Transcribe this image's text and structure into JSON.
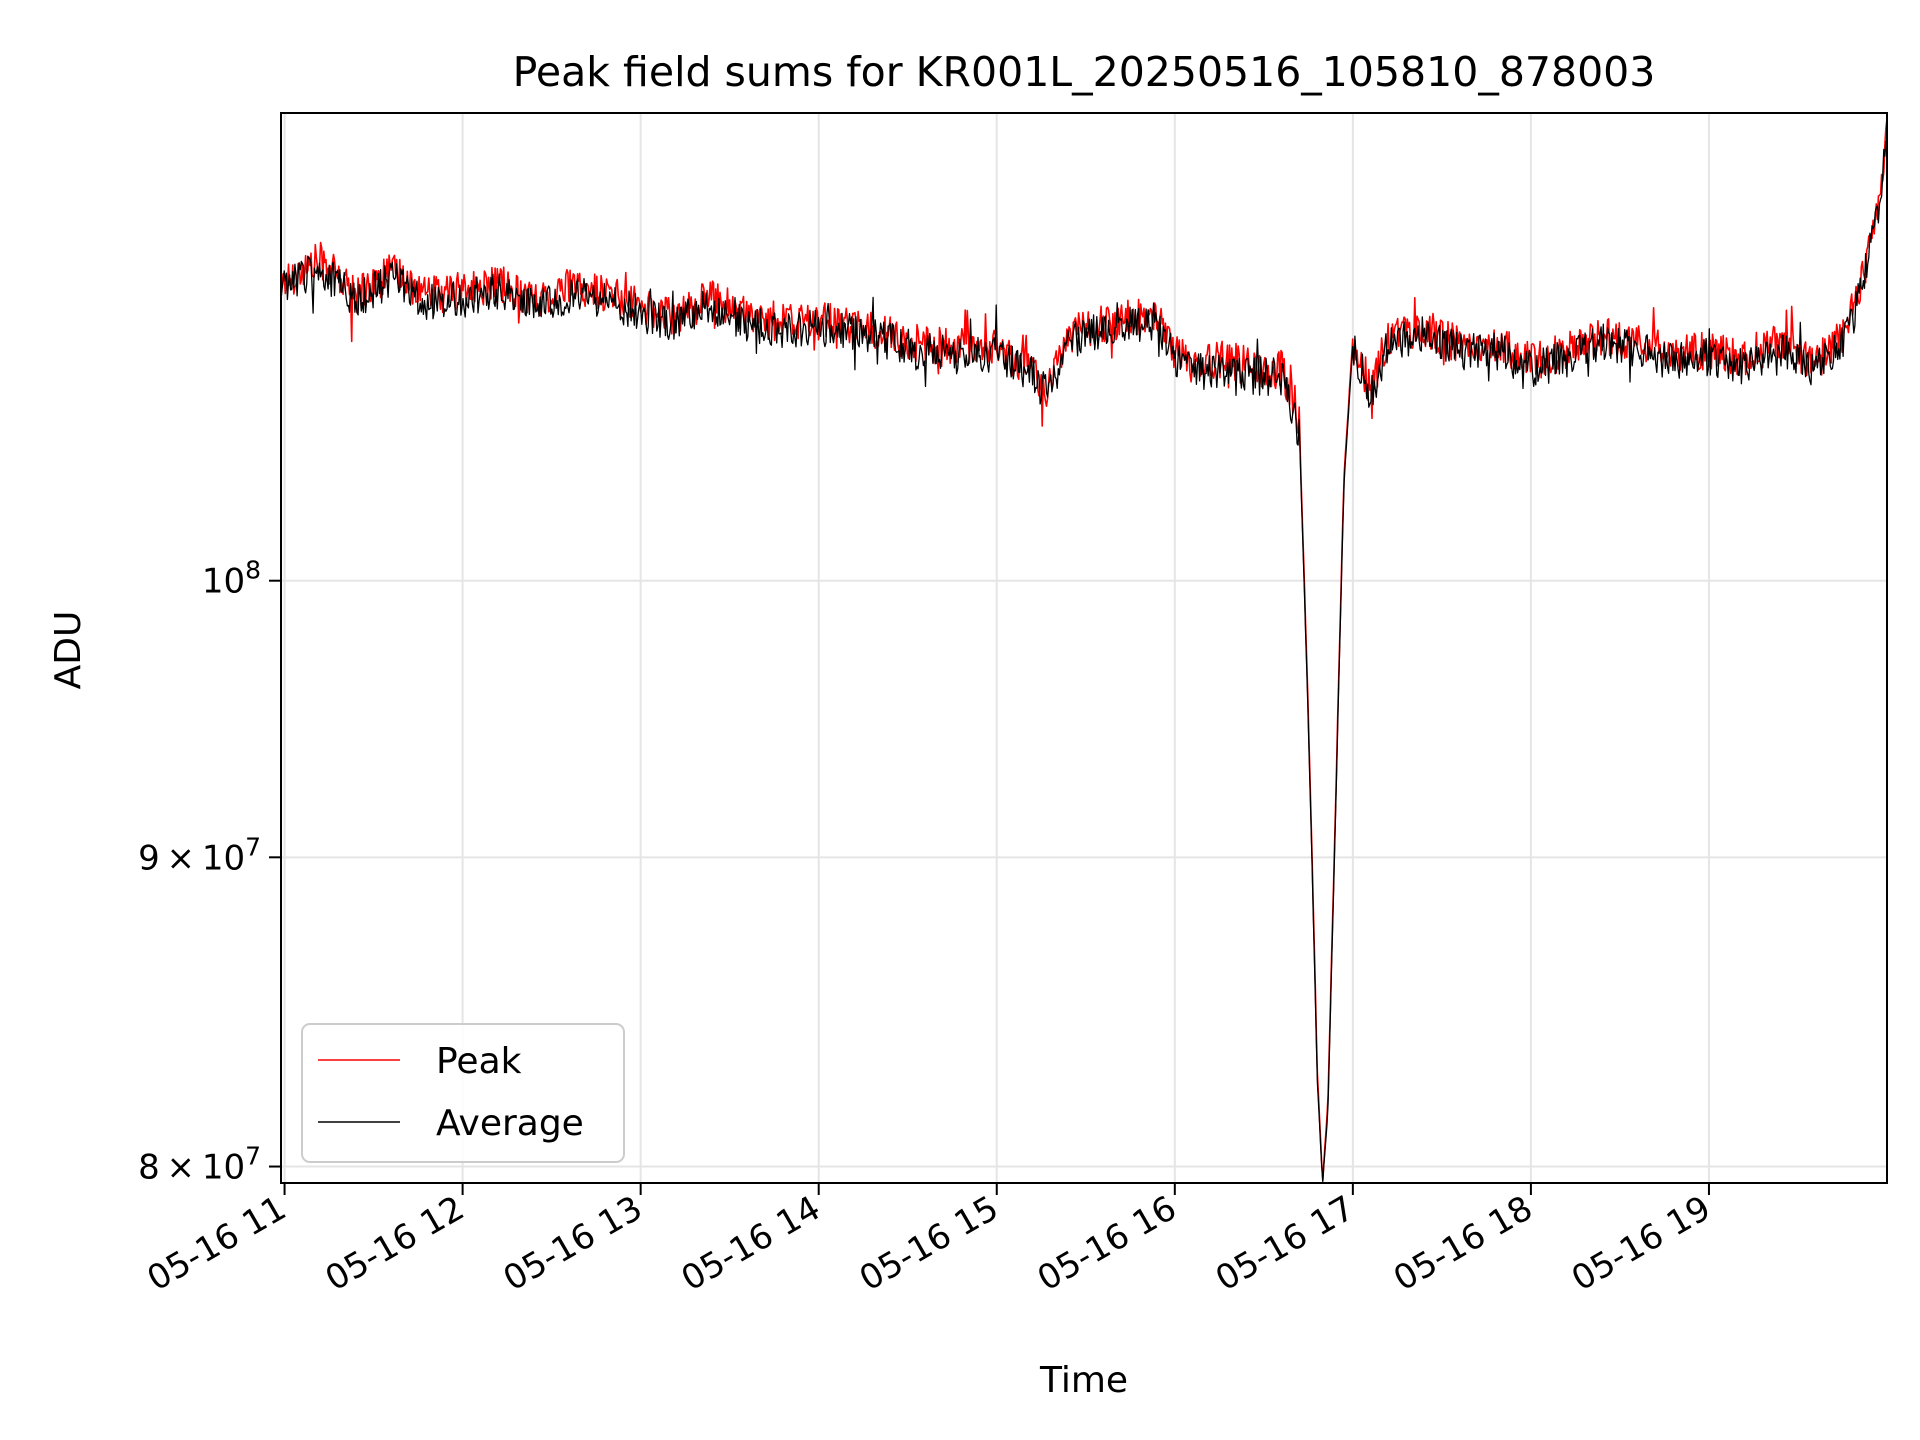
{
  "chart_data": {
    "type": "line",
    "title": "Peak field sums for KR001L_20250516_105810_878003",
    "xlabel": "Time",
    "ylabel": "ADU",
    "yscale": "log",
    "ylim": [
      79500000,
      119500000
    ],
    "xlim_hours": [
      10.98,
      20.0
    ],
    "grid": true,
    "legend_position": "lower-left",
    "x_ticks": [
      {
        "value": 11,
        "label": "05-16 11"
      },
      {
        "value": 12,
        "label": "05-16 12"
      },
      {
        "value": 13,
        "label": "05-16 13"
      },
      {
        "value": 14,
        "label": "05-16 14"
      },
      {
        "value": 15,
        "label": "05-16 15"
      },
      {
        "value": 16,
        "label": "05-16 16"
      },
      {
        "value": 17,
        "label": "05-16 17"
      },
      {
        "value": 18,
        "label": "05-16 18"
      },
      {
        "value": 19,
        "label": "05-16 19"
      }
    ],
    "y_ticks": [
      {
        "value": 80000000,
        "mantissa": "8",
        "exp": "7"
      },
      {
        "value": 90000000,
        "mantissa": "9",
        "exp": "7"
      },
      {
        "value": 100000000,
        "mantissa": "",
        "exp": "8"
      }
    ],
    "y_tick_times": "×",
    "y_tick_base": "10",
    "x": [
      10.98,
      11.2,
      11.4,
      11.6,
      11.8,
      12.0,
      12.2,
      12.4,
      12.6,
      12.8,
      13.0,
      13.2,
      13.4,
      13.6,
      13.8,
      14.0,
      14.2,
      14.4,
      14.6,
      14.75,
      15.0,
      15.1,
      15.2,
      15.28,
      15.4,
      15.6,
      15.8,
      15.9,
      16.0,
      16.1,
      16.3,
      16.45,
      16.6,
      16.65,
      16.7,
      16.75,
      16.8,
      16.83,
      16.86,
      16.9,
      16.95,
      17.0,
      17.1,
      17.2,
      17.4,
      17.6,
      17.8,
      18.0,
      18.2,
      18.4,
      18.6,
      18.8,
      19.0,
      19.2,
      19.4,
      19.6,
      19.75,
      19.85,
      19.95,
      20.0
    ],
    "series": [
      {
        "name": "Peak",
        "color": "#ff0000",
        "values": [
          112000000,
          113000000,
          111500000,
          112500000,
          111500000,
          111600000,
          112000000,
          111300000,
          111800000,
          111600000,
          111000000,
          110600000,
          111400000,
          110600000,
          110300000,
          110400000,
          110200000,
          109800000,
          109400000,
          109300000,
          109300000,
          108800000,
          108500000,
          107600000,
          109800000,
          110300000,
          110600000,
          110400000,
          109200000,
          108600000,
          108800000,
          108400000,
          108400000,
          107400000,
          106000000,
          95000000,
          83000000,
          79500000,
          82000000,
          91000000,
          104000000,
          109700000,
          107500000,
          109700000,
          110100000,
          109400000,
          109500000,
          108700000,
          109100000,
          109800000,
          109500000,
          109000000,
          109200000,
          108800000,
          109500000,
          108600000,
          109800000,
          111800000,
          115500000,
          118800000
        ]
      },
      {
        "name": "Average",
        "color": "#000000",
        "values": [
          111700000,
          112700000,
          111200000,
          112200000,
          111200000,
          111300000,
          111700000,
          111000000,
          111500000,
          111300000,
          110700000,
          110300000,
          111100000,
          110300000,
          110000000,
          110100000,
          109900000,
          109500000,
          109100000,
          109000000,
          109000000,
          108500000,
          108200000,
          107300000,
          109500000,
          110000000,
          110300000,
          110100000,
          108900000,
          108300000,
          108500000,
          108100000,
          108100000,
          107100000,
          105700000,
          94700000,
          82700000,
          79500000,
          81700000,
          90700000,
          103700000,
          109400000,
          107200000,
          109400000,
          109800000,
          109100000,
          109200000,
          108400000,
          108800000,
          109500000,
          109200000,
          108700000,
          108900000,
          108500000,
          109200000,
          108300000,
          109500000,
          111500000,
          115200000,
          118400000
        ]
      }
    ]
  }
}
